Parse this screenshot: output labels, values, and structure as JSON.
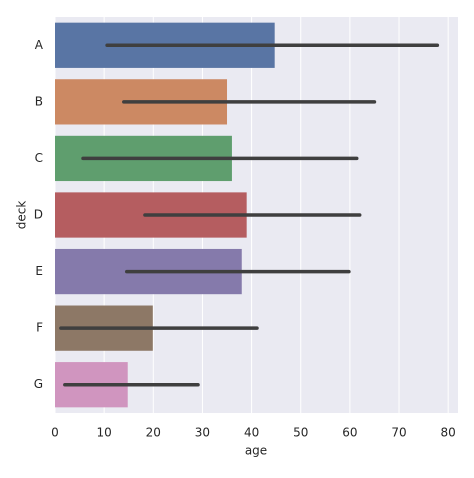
{
  "chart_data": {
    "type": "bar",
    "orientation": "horizontal",
    "x_label": "age",
    "y_label": "deck",
    "categories": [
      "A",
      "B",
      "C",
      "D",
      "E",
      "F",
      "G"
    ],
    "values": [
      44.7,
      35.0,
      36.0,
      39.0,
      38.0,
      19.9,
      14.8
    ],
    "error_low": [
      10.6,
      14.0,
      5.7,
      18.3,
      14.6,
      1.2,
      2.0
    ],
    "error_high": [
      77.8,
      65.0,
      61.4,
      62.0,
      59.8,
      41.1,
      29.1
    ],
    "colors": [
      "#5975a4",
      "#cc8963",
      "#5f9e6e",
      "#b55d60",
      "#857aab",
      "#8d7866",
      "#d095bf"
    ],
    "error_color": "#3f3f3f",
    "xlim": [
      0,
      82
    ],
    "xticks": [
      0,
      10,
      20,
      30,
      40,
      50,
      60,
      70,
      80
    ],
    "grid": true
  }
}
